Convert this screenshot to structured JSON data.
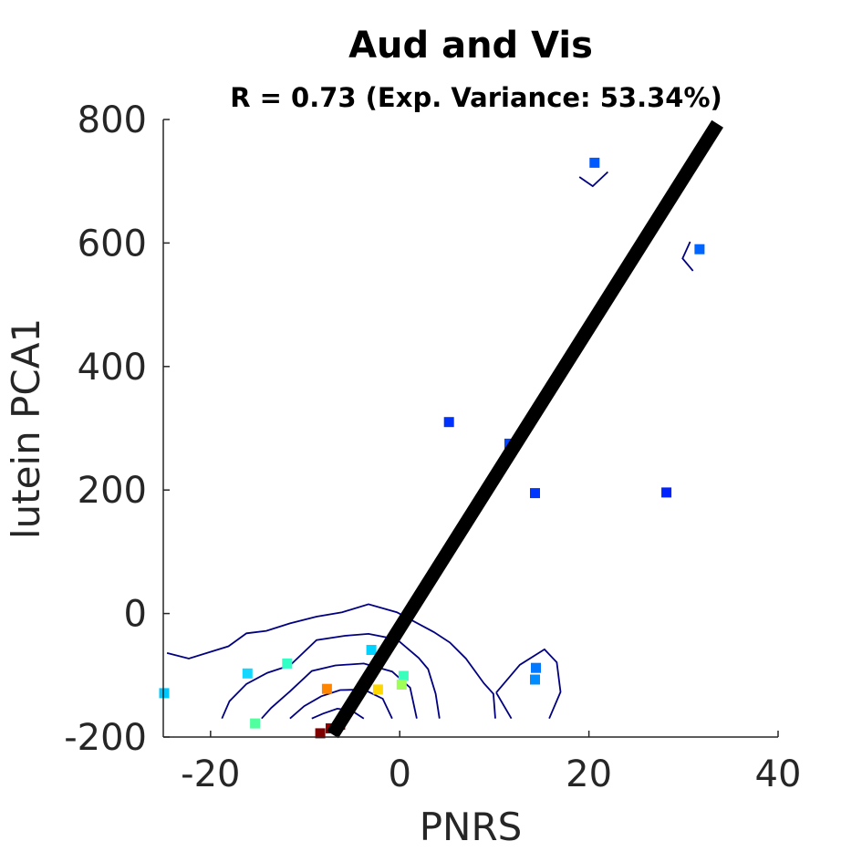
{
  "chart_data": {
    "type": "scatter",
    "title": "Aud and Vis",
    "subtitle": "R = 0.73 (Exp. Variance: 53.34%)",
    "xlabel": "PNRS",
    "ylabel": "lutein PCA1",
    "xlim": [
      -25,
      40
    ],
    "ylim": [
      -200,
      800
    ],
    "xticks": [
      -20,
      0,
      20,
      40
    ],
    "yticks": [
      -200,
      0,
      200,
      400,
      600,
      800
    ],
    "xtick_labels": [
      "-20",
      "0",
      "20",
      "40"
    ],
    "ytick_labels": [
      "-200",
      "0",
      "200",
      "400",
      "600",
      "800"
    ],
    "grid": false,
    "points": [
      {
        "x": 20.6,
        "y": 730,
        "color": "#005aff"
      },
      {
        "x": 31.7,
        "y": 590,
        "color": "#0064ff"
      },
      {
        "x": 5.2,
        "y": 310,
        "color": "#0032ff"
      },
      {
        "x": 11.6,
        "y": 275,
        "color": "#0046ff"
      },
      {
        "x": 14.3,
        "y": 195,
        "color": "#0037ff"
      },
      {
        "x": 28.2,
        "y": 196,
        "color": "#0023ff"
      },
      {
        "x": -24.9,
        "y": -129,
        "color": "#00c8ff"
      },
      {
        "x": -16.1,
        "y": -97,
        "color": "#14d7ff"
      },
      {
        "x": -15.3,
        "y": -178,
        "color": "#50ff9e"
      },
      {
        "x": -11.9,
        "y": -81,
        "color": "#32ffc6"
      },
      {
        "x": -3.0,
        "y": -59,
        "color": "#00d2ff"
      },
      {
        "x": 0.4,
        "y": -101,
        "color": "#3affbc"
      },
      {
        "x": 0.2,
        "y": -115,
        "color": "#a0ff56"
      },
      {
        "x": -2.3,
        "y": -123,
        "color": "#ffd700"
      },
      {
        "x": -7.7,
        "y": -122,
        "color": "#ff8400"
      },
      {
        "x": 14.4,
        "y": -88,
        "color": "#0078ff"
      },
      {
        "x": 14.3,
        "y": -107,
        "color": "#008cff"
      },
      {
        "x": -8.4,
        "y": -194,
        "color": "#800000"
      },
      {
        "x": -6.3,
        "y": -180,
        "color": "#a00000"
      },
      {
        "x": -7.3,
        "y": -186,
        "color": "#8f0000"
      }
    ],
    "fit_line": {
      "x": [
        -7.1,
        33.6
      ],
      "y": [
        -196,
        793
      ],
      "color": "#000000"
    },
    "contours": [
      [
        [
          -24.6,
          -64
        ],
        [
          -22.3,
          -73
        ],
        [
          -18.1,
          -53
        ],
        [
          -16.2,
          -32
        ],
        [
          -14.1,
          -28
        ],
        [
          -11.6,
          -16
        ],
        [
          -8.8,
          -5
        ],
        [
          -6.1,
          2
        ],
        [
          -3.3,
          15
        ],
        [
          -0.3,
          2
        ],
        [
          3.6,
          -30
        ],
        [
          5.3,
          -47
        ],
        [
          7.0,
          -73
        ],
        [
          8.9,
          -113
        ],
        [
          9.9,
          -130
        ],
        [
          10.1,
          -170
        ]
      ],
      [
        [
          -18.8,
          -170
        ],
        [
          -18.0,
          -142
        ],
        [
          -16.2,
          -114
        ],
        [
          -14.0,
          -96
        ],
        [
          -11.6,
          -84
        ],
        [
          -8.8,
          -43
        ],
        [
          -5.8,
          -36
        ],
        [
          -3.3,
          -33
        ],
        [
          -0.3,
          -42
        ],
        [
          2.0,
          -72
        ],
        [
          3.0,
          -90
        ],
        [
          3.8,
          -130
        ],
        [
          4.2,
          -170
        ]
      ],
      [
        [
          -14.6,
          -170
        ],
        [
          -13.6,
          -153
        ],
        [
          -11.6,
          -126
        ],
        [
          -9.3,
          -93
        ],
        [
          -6.8,
          -84
        ],
        [
          -3.8,
          -81
        ],
        [
          -0.8,
          -94
        ],
        [
          1.1,
          -120
        ],
        [
          1.8,
          -170
        ]
      ],
      [
        [
          -11.6,
          -170
        ],
        [
          -10.1,
          -150
        ],
        [
          -8.3,
          -134
        ],
        [
          -6.3,
          -124
        ],
        [
          -3.8,
          -123
        ],
        [
          -1.8,
          -138
        ],
        [
          -0.8,
          -170
        ]
      ],
      [
        [
          -9.3,
          -170
        ],
        [
          -8.1,
          -162
        ],
        [
          -6.6,
          -154
        ],
        [
          -5.1,
          -157
        ],
        [
          -3.8,
          -170
        ]
      ],
      [
        [
          10.2,
          -128
        ],
        [
          12.7,
          -83
        ],
        [
          15.3,
          -58
        ],
        [
          16.6,
          -79
        ],
        [
          17.0,
          -127
        ],
        [
          15.8,
          -170
        ]
      ],
      [
        [
          11.8,
          -170
        ],
        [
          10.2,
          -128
        ]
      ],
      [
        [
          19.0,
          707
        ],
        [
          20.4,
          692
        ],
        [
          22.0,
          715
        ]
      ],
      [
        [
          30.7,
          602
        ],
        [
          29.9,
          575
        ],
        [
          31.0,
          555
        ]
      ]
    ]
  }
}
